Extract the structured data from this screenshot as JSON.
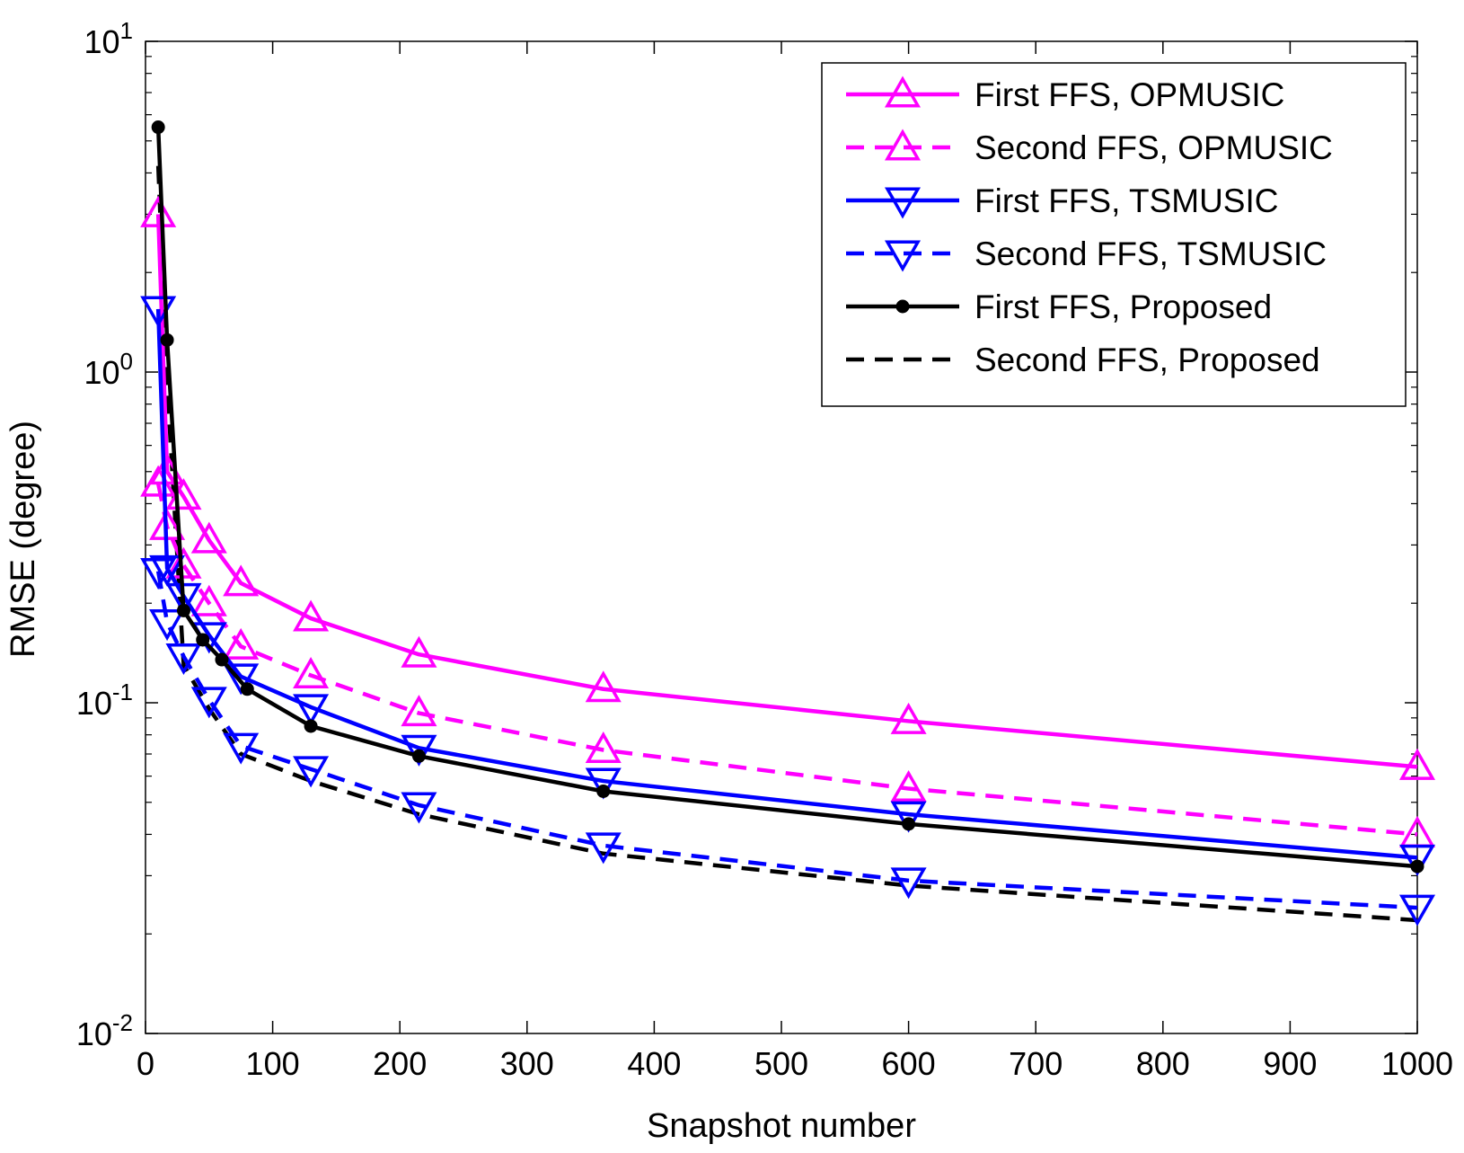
{
  "chart_data": {
    "type": "line",
    "title": "",
    "xlabel": "Snapshot number",
    "ylabel": "RMSE (degree)",
    "xlim": [
      0,
      1000
    ],
    "ylim": [
      0.01,
      10
    ],
    "yscale": "log",
    "grid": false,
    "legend_position": "top-right",
    "xticks": [
      0,
      100,
      200,
      300,
      400,
      500,
      600,
      700,
      800,
      900,
      1000
    ],
    "xtick_labels": [
      "0",
      "100",
      "200",
      "300",
      "400",
      "500",
      "600",
      "700",
      "800",
      "900",
      "1000"
    ],
    "yticks": [
      {
        "value": 10,
        "base": "10",
        "exp": "1"
      },
      {
        "value": 1,
        "base": "10",
        "exp": "0"
      },
      {
        "value": 0.1,
        "base": "10",
        "exp": "-1"
      },
      {
        "value": 0.01,
        "base": "10",
        "exp": "-2"
      }
    ],
    "series": [
      {
        "name": "First FFS, OPMUSIC",
        "color": "#ff00ff",
        "dash": "solid",
        "marker": "triangle-up",
        "x": [
          10,
          17,
          30,
          50,
          75,
          130,
          215,
          360,
          600,
          1000
        ],
        "y": [
          3.0,
          0.5,
          0.42,
          0.31,
          0.23,
          0.18,
          0.14,
          0.11,
          0.088,
          0.064
        ]
      },
      {
        "name": "Second FFS, OPMUSIC",
        "color": "#ff00ff",
        "dash": "dashed",
        "marker": "triangle-up",
        "x": [
          10,
          17,
          30,
          50,
          75,
          130,
          215,
          360,
          600,
          1000
        ],
        "y": [
          0.46,
          0.34,
          0.26,
          0.2,
          0.148,
          0.121,
          0.093,
          0.072,
          0.055,
          0.04
        ]
      },
      {
        "name": "First FFS, TSMUSIC",
        "color": "#0000ff",
        "dash": "solid",
        "marker": "triangle-down",
        "x": [
          10,
          17,
          30,
          50,
          75,
          130,
          215,
          360,
          600,
          1000
        ],
        "y": [
          1.55,
          0.255,
          0.21,
          0.16,
          0.12,
          0.097,
          0.073,
          0.058,
          0.046,
          0.034
        ]
      },
      {
        "name": "Second FFS, TSMUSIC",
        "color": "#0000ff",
        "dash": "dashed",
        "marker": "triangle-down",
        "x": [
          10,
          17,
          30,
          50,
          75,
          130,
          215,
          360,
          600,
          1000
        ],
        "y": [
          0.25,
          0.175,
          0.138,
          0.102,
          0.074,
          0.063,
          0.049,
          0.037,
          0.029,
          0.024
        ]
      },
      {
        "name": "First FFS, Proposed",
        "color": "#000000",
        "dash": "solid",
        "marker": "dot",
        "x": [
          10,
          17,
          30,
          45,
          60,
          80,
          130,
          215,
          360,
          600,
          1000
        ],
        "y": [
          5.5,
          1.25,
          0.19,
          0.155,
          0.135,
          0.11,
          0.085,
          0.069,
          0.054,
          0.043,
          0.032
        ]
      },
      {
        "name": "Second FFS, Proposed",
        "color": "#000000",
        "dash": "dashed",
        "marker": "none",
        "x": [
          10,
          17,
          30,
          50,
          75,
          130,
          215,
          360,
          600,
          1000
        ],
        "y": [
          4.2,
          0.92,
          0.13,
          0.096,
          0.07,
          0.058,
          0.046,
          0.035,
          0.028,
          0.022
        ]
      }
    ]
  }
}
